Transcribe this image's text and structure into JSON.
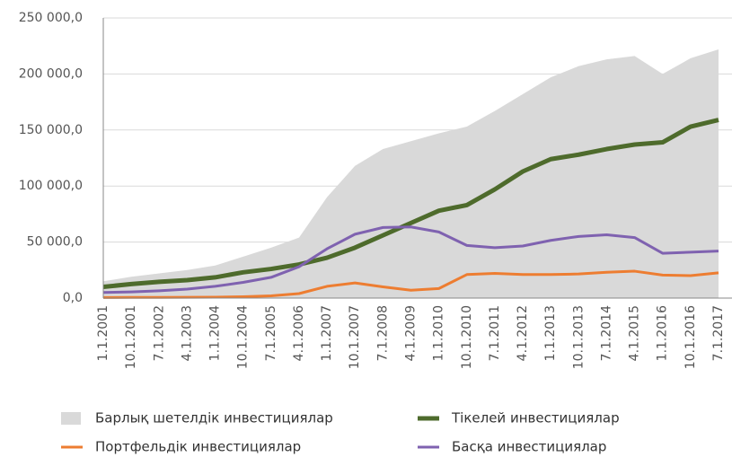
{
  "chart_data": {
    "type": "line",
    "categories": [
      "1.1.2001",
      "10.1.2001",
      "7.1.2002",
      "4.1.2003",
      "1.1.2004",
      "10.1.2004",
      "7.1.2005",
      "4.1.2006",
      "1.1.2007",
      "10.1.2007",
      "7.1.2008",
      "4.1.2009",
      "1.1.2010",
      "10.1.2010",
      "7.1.2011",
      "4.1.2012",
      "1.1.2013",
      "10.1.2013",
      "7.1.2014",
      "4.1.2015",
      "1.1.2016",
      "10.1.2016",
      "7.1.2017"
    ],
    "series": [
      {
        "name": "Барлық шетелдік инвестициялар",
        "color": "#d9d9d9",
        "area": true,
        "values": [
          15000,
          19000,
          22000,
          25000,
          29000,
          37000,
          45000,
          54000,
          90000,
          118000,
          133000,
          140000,
          147000,
          153000,
          167000,
          182000,
          197000,
          207000,
          213000,
          216000,
          200000,
          214000,
          222000
        ]
      },
      {
        "name": "Тікелей инвестициялар",
        "color": "#4e6b2c",
        "values": [
          10000,
          12500,
          14500,
          16000,
          18500,
          23000,
          26000,
          30000,
          36000,
          45000,
          56000,
          67000,
          78000,
          83000,
          97000,
          113000,
          124000,
          128000,
          133000,
          137000,
          139000,
          153000,
          159000
        ]
      },
      {
        "name": "Портфельдік инвестициялар",
        "color": "#ed7d31",
        "values": [
          500,
          600,
          600,
          700,
          800,
          1200,
          2000,
          4000,
          10500,
          13500,
          10000,
          7000,
          8500,
          21000,
          22000,
          21000,
          21000,
          21500,
          23000,
          24000,
          20500,
          20000,
          22500
        ]
      },
      {
        "name": "Басқа инвестициялар",
        "color": "#7f62b0",
        "values": [
          5000,
          5500,
          6500,
          8000,
          10500,
          14000,
          18500,
          28000,
          44000,
          57000,
          63000,
          63500,
          59000,
          47000,
          45000,
          46500,
          51500,
          55000,
          56500,
          54000,
          40000,
          41000,
          42000
        ]
      }
    ],
    "ylim": [
      0,
      250000
    ],
    "yticks": [
      {
        "value": 0,
        "label": "0,0"
      },
      {
        "value": 50000,
        "label": "50 000,0"
      },
      {
        "value": 100000,
        "label": "100 000,0"
      },
      {
        "value": 150000,
        "label": "150 000,0"
      },
      {
        "value": 200000,
        "label": "200 000,0"
      },
      {
        "value": 250000,
        "label": "250 000,0"
      }
    ],
    "grid": true
  }
}
